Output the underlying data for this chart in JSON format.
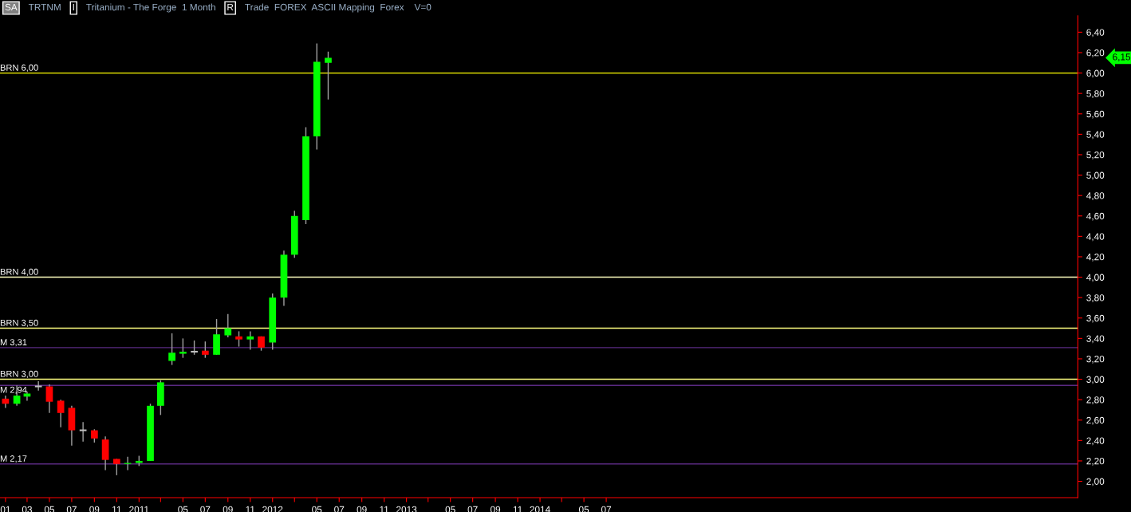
{
  "chart_data": {
    "type": "candlestick",
    "title": "TRTNM",
    "subtitle": "Tritanium - The Forge  1 Month",
    "annotations": [
      "SA",
      "I",
      "R",
      "Trade  FOREX  ASCII Mapping  Forex",
      "V=0",
      "6,15"
    ],
    "x": [
      "2010-01",
      "2010-02",
      "2010-03",
      "2010-04",
      "2010-05",
      "2010-06",
      "2010-07",
      "2010-08",
      "2010-09",
      "2010-10",
      "2010-11",
      "2010-12",
      "2011-01",
      "2011-02",
      "2011-03",
      "2011-04",
      "2011-05",
      "2011-06",
      "2011-07",
      "2011-08",
      "2011-09",
      "2011-10",
      "2011-11",
      "2011-12",
      "2012-01",
      "2012-02",
      "2012-03",
      "2012-04",
      "2012-05",
      "2012-06"
    ],
    "ohlc": [
      [
        2.81,
        2.84,
        2.72,
        2.76
      ],
      [
        2.76,
        2.94,
        2.74,
        2.84
      ],
      [
        2.83,
        2.88,
        2.79,
        2.86
      ],
      [
        2.93,
        2.98,
        2.89,
        2.93
      ],
      [
        2.93,
        2.95,
        2.67,
        2.78
      ],
      [
        2.79,
        2.8,
        2.53,
        2.67
      ],
      [
        2.72,
        2.74,
        2.35,
        2.5
      ],
      [
        2.5,
        2.58,
        2.39,
        2.5
      ],
      [
        2.5,
        2.51,
        2.38,
        2.42
      ],
      [
        2.41,
        2.44,
        2.11,
        2.21
      ],
      [
        2.22,
        2.22,
        2.06,
        2.17
      ],
      [
        2.17,
        2.24,
        2.11,
        2.18
      ],
      [
        2.18,
        2.25,
        2.15,
        2.2
      ],
      [
        2.2,
        2.76,
        2.2,
        2.74
      ],
      [
        2.74,
        2.99,
        2.65,
        2.97
      ],
      [
        3.18,
        3.45,
        3.14,
        3.26
      ],
      [
        3.25,
        3.4,
        3.21,
        3.27
      ],
      [
        3.27,
        3.38,
        3.24,
        3.27
      ],
      [
        3.28,
        3.37,
        3.21,
        3.24
      ],
      [
        3.24,
        3.59,
        3.24,
        3.44
      ],
      [
        3.43,
        3.64,
        3.41,
        3.5
      ],
      [
        3.42,
        3.47,
        3.32,
        3.39
      ],
      [
        3.39,
        3.47,
        3.29,
        3.42
      ],
      [
        3.42,
        3.42,
        3.28,
        3.31
      ],
      [
        3.36,
        3.84,
        3.29,
        3.8
      ],
      [
        3.8,
        4.26,
        3.72,
        4.22
      ],
      [
        4.22,
        4.65,
        4.19,
        4.6
      ],
      [
        4.56,
        5.47,
        4.52,
        5.38
      ],
      [
        5.38,
        6.29,
        5.25,
        6.11
      ],
      [
        6.1,
        6.21,
        5.74,
        6.15
      ]
    ],
    "colors": [
      "#ff0000",
      "#00ff00",
      "#00ff00",
      "#c0c0c0",
      "#ff0000",
      "#ff0000",
      "#ff0000",
      "#c0c0c0",
      "#ff0000",
      "#ff0000",
      "#ff0000",
      "#00ff00",
      "#00ff00",
      "#00ff00",
      "#00ff00",
      "#00ff00",
      "#00ff00",
      "#c0c0c0",
      "#ff0000",
      "#00ff00",
      "#00ff00",
      "#ff0000",
      "#00ff00",
      "#ff0000",
      "#00ff00",
      "#00ff00",
      "#00ff00",
      "#00ff00",
      "#00ff00",
      "#00ff00"
    ],
    "xlim": [
      "2009-12-17",
      "2018-01-10"
    ],
    "xticks": [
      {
        "value": "2010-01",
        "label": "01"
      },
      {
        "value": "2010-03",
        "label": "03"
      },
      {
        "value": "2010-05",
        "label": "05"
      },
      {
        "value": "2010-07",
        "label": "07"
      },
      {
        "value": "2010-09",
        "label": "09"
      },
      {
        "value": "2010-11",
        "label": "11"
      },
      {
        "value": "2011-01",
        "label": "2011"
      },
      {
        "value": "2011-03",
        "label": null
      },
      {
        "value": "2011-05",
        "label": "05"
      },
      {
        "value": "2011-07",
        "label": "07"
      },
      {
        "value": "2011-09",
        "label": "09"
      },
      {
        "value": "2011-11",
        "label": "11"
      },
      {
        "value": "2012-01",
        "label": "2012"
      },
      {
        "value": "2012-03",
        "label": null
      },
      {
        "value": "2012-05",
        "label": "05"
      },
      {
        "value": "2012-07",
        "label": "07"
      },
      {
        "value": "2012-09",
        "label": "09"
      },
      {
        "value": "2012-11",
        "label": "11"
      },
      {
        "value": "2013-01",
        "label": "2013"
      },
      {
        "value": "2013-03",
        "label": null
      },
      {
        "value": "2013-05",
        "label": "05"
      },
      {
        "value": "2013-07",
        "label": "07"
      },
      {
        "value": "2013-09",
        "label": "09"
      },
      {
        "value": "2013-11",
        "label": "11"
      },
      {
        "value": "2014-01",
        "label": "2014"
      },
      {
        "value": "2014-03",
        "label": null
      },
      {
        "value": "2014-05",
        "label": "05"
      },
      {
        "value": "2014-07",
        "label": "07"
      }
    ],
    "ylim": [
      1.84,
      6.56
    ],
    "yticks": [
      {
        "value": 2.0,
        "label": "2,00"
      },
      {
        "value": 2.2,
        "label": "2,20"
      },
      {
        "value": 2.4,
        "label": "2,40"
      },
      {
        "value": 2.6,
        "label": "2,60"
      },
      {
        "value": 2.8,
        "label": "2,80"
      },
      {
        "value": 3.0,
        "label": "3,00"
      },
      {
        "value": 3.2,
        "label": "3,20"
      },
      {
        "value": 3.4,
        "label": "3,40"
      },
      {
        "value": 3.6,
        "label": "3,60"
      },
      {
        "value": 3.8,
        "label": "3,80"
      },
      {
        "value": 4.0,
        "label": "4,00"
      },
      {
        "value": 4.2,
        "label": "4,20"
      },
      {
        "value": 4.4,
        "label": "4,40"
      },
      {
        "value": 4.6,
        "label": "4,60"
      },
      {
        "value": 4.8,
        "label": "4,80"
      },
      {
        "value": 5.0,
        "label": "5,00"
      },
      {
        "value": 5.2,
        "label": "5,20"
      },
      {
        "value": 5.4,
        "label": "5,40"
      },
      {
        "value": 5.6,
        "label": "5,60"
      },
      {
        "value": 5.8,
        "label": "5,80"
      },
      {
        "value": 6.0,
        "label": "6,00"
      },
      {
        "value": 6.2,
        "label": "6,20"
      },
      {
        "value": 6.4,
        "label": "6,40"
      }
    ],
    "ref_lines": [
      {
        "axis": "y",
        "value": 6.0,
        "label": "BRN 6,00",
        "color": "#ffff00"
      },
      {
        "axis": "y",
        "value": 4.0,
        "label": "BRN 4,00",
        "color": "#ffffc0"
      },
      {
        "axis": "y",
        "value": 3.5,
        "label": "BRN 3,50",
        "color": "#ffff80"
      },
      {
        "axis": "y",
        "value": 3.31,
        "label": "M 3,31",
        "color": "#5a2a82"
      },
      {
        "axis": "y",
        "value": 3.0,
        "label": "BRN 3,00",
        "color": "#ffff80"
      },
      {
        "axis": "y",
        "value": 2.94,
        "label": "M 2,94",
        "color": "#5a2a82"
      },
      {
        "axis": "y",
        "value": 2.17,
        "label": "M 2,17",
        "color": "#5a2a82"
      }
    ],
    "grid": false
  }
}
